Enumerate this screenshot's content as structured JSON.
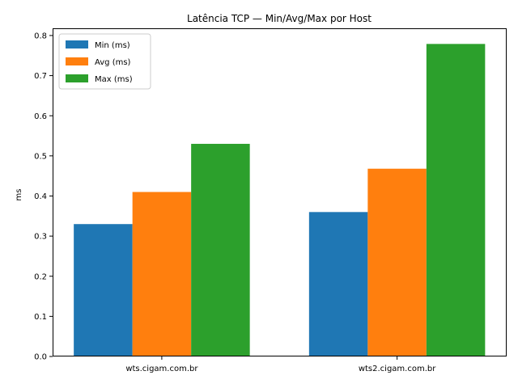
{
  "chart_data": {
    "type": "bar",
    "title": "Latência TCP — Min/Avg/Max por Host",
    "xlabel": "",
    "ylabel": "ms",
    "categories": [
      "wts.cigam.com.br",
      "wts2.cigam.com.br"
    ],
    "series": [
      {
        "name": "Min (ms)",
        "values": [
          0.33,
          0.36
        ],
        "color": "#1f77b4"
      },
      {
        "name": "Avg (ms)",
        "values": [
          0.41,
          0.468
        ],
        "color": "#ff7f0e"
      },
      {
        "name": "Max (ms)",
        "values": [
          0.53,
          0.779
        ],
        "color": "#2ca02c"
      }
    ],
    "ylim": [
      0,
      0.818
    ],
    "yticks": [
      "0.0",
      "0.1",
      "0.2",
      "0.3",
      "0.4",
      "0.5",
      "0.6",
      "0.7",
      "0.8"
    ],
    "legend_position": "top-left",
    "grid": false
  }
}
